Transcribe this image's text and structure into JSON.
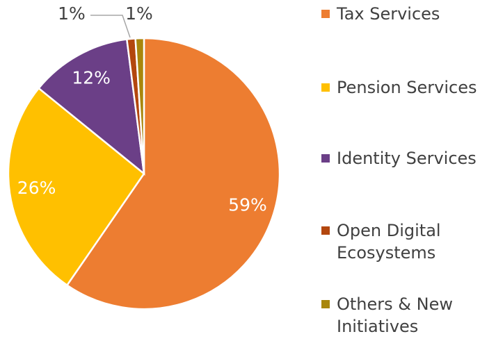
{
  "chart_data": {
    "type": "pie",
    "categories": [
      "Tax Services",
      "Pension Services",
      "Identity Services",
      "Open Digital Ecosystems",
      "Others & New Initiatives"
    ],
    "values": [
      59,
      26,
      12,
      1,
      1
    ],
    "value_labels": [
      "59%",
      "26%",
      "12%",
      "1%",
      "1%"
    ],
    "colors": [
      "#ed7d31",
      "#ffc000",
      "#6b3f87",
      "#b3470e",
      "#a8860c"
    ],
    "legend": "right"
  }
}
